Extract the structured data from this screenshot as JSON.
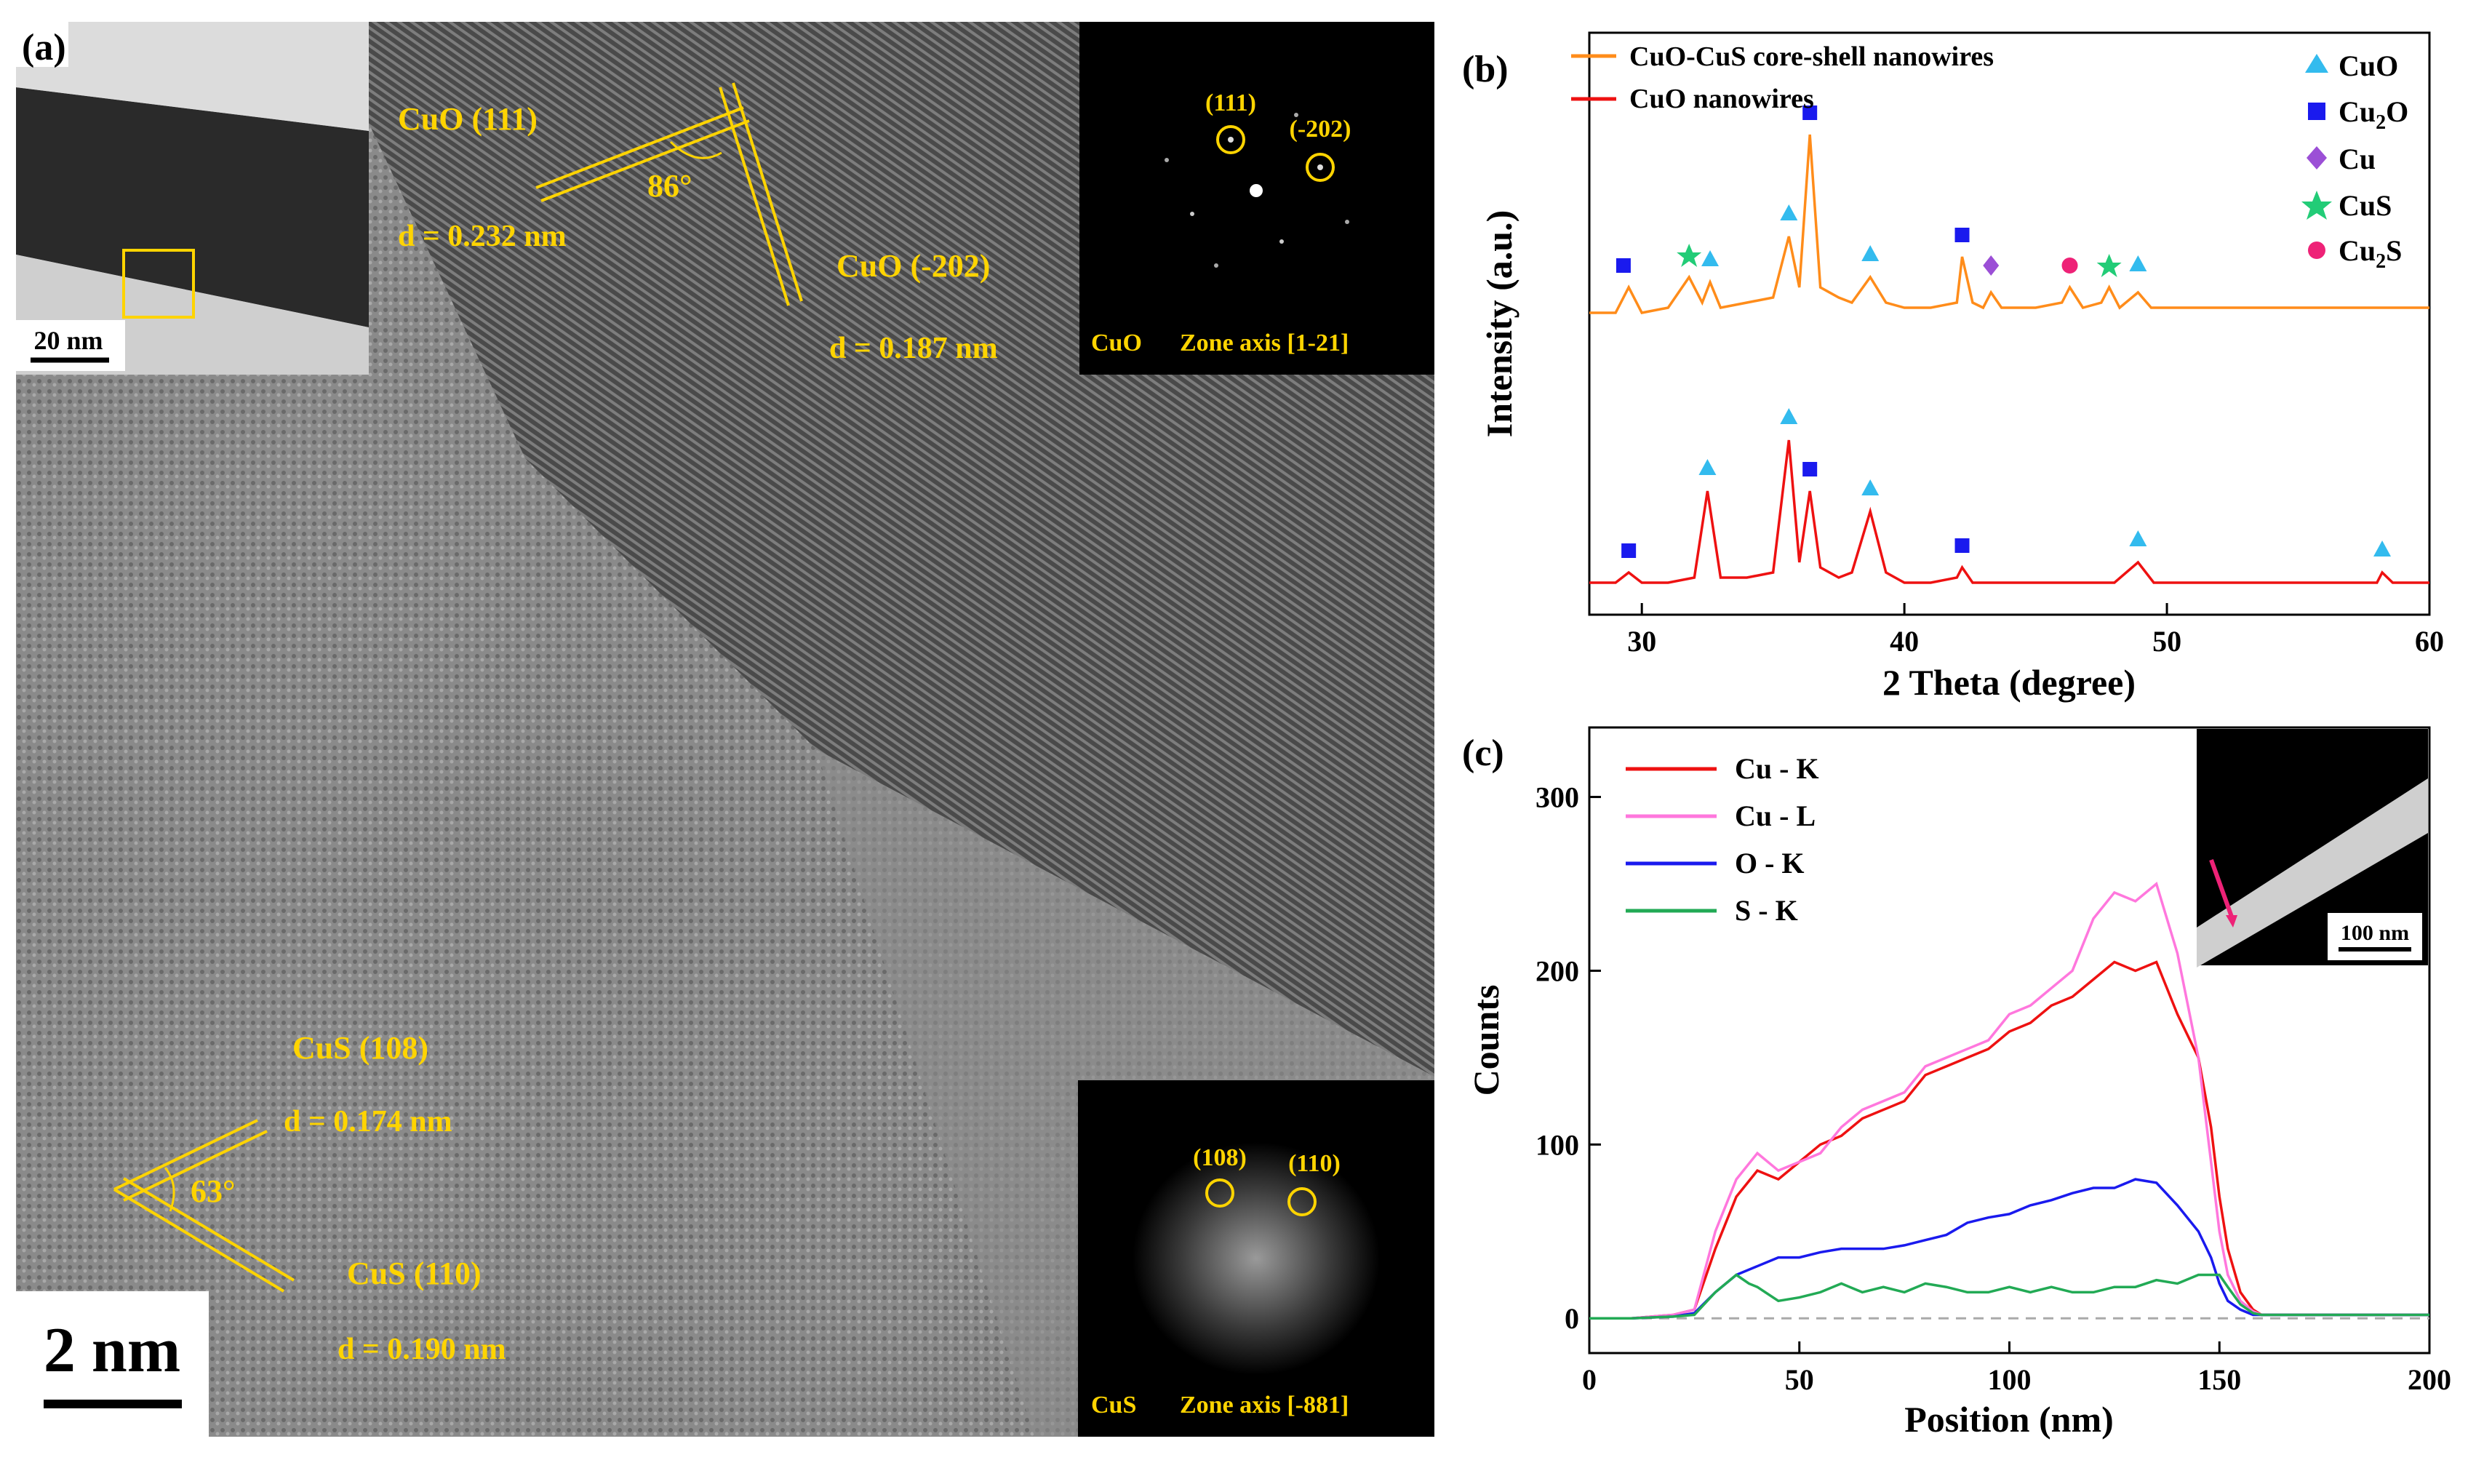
{
  "panel_a": {
    "label": "(a)",
    "inset_scale": "20 nm",
    "scale_bar": "2 nm",
    "cuo_111": "CuO (111)",
    "cuo_111_d": "d = 0.232 nm",
    "cuo_202": "CuO (-202)",
    "cuo_202_d": "d = 0.187 nm",
    "angle_cuo": "86°",
    "saed_cuo": {
      "spot1": "(111)",
      "spot2": "(-202)",
      "phase": "CuO",
      "zone": "Zone axis [1-21]"
    },
    "cus_108": "CuS (108)",
    "cus_108_d": "d = 0.174 nm",
    "cus_110": "CuS (110)",
    "cus_110_d": "d = 0.190 nm",
    "angle_cus": "63°",
    "fft_cus": {
      "spot1": "(108)",
      "spot2": "(110)",
      "phase": "CuS",
      "zone": "Zone axis [-881]"
    },
    "colors": {
      "annotation": "#ffd400"
    }
  },
  "chart_data": [
    {
      "panel": "(b)",
      "type": "line",
      "xlabel": "2 Theta (degree)",
      "ylabel": "Intensity (a.u.)",
      "xlim": [
        28,
        60
      ],
      "xticks": [
        30,
        40,
        50,
        60
      ],
      "series": [
        {
          "name": "CuO-CuS core-shell nanowires",
          "color": "#ff8c1a",
          "x": [
            28,
            29,
            29.5,
            30,
            31,
            31.8,
            32.3,
            32.6,
            33,
            34,
            35,
            35.6,
            36,
            36.4,
            36.8,
            37.5,
            38,
            38.7,
            39.3,
            40,
            41,
            42,
            42.2,
            42.6,
            43,
            43.3,
            43.7,
            44,
            45,
            46,
            46.3,
            46.8,
            47.5,
            47.8,
            48.2,
            48.9,
            49.4,
            50,
            51,
            52,
            53,
            54,
            55,
            56,
            57,
            58,
            59,
            60
          ],
          "y": [
            0.55,
            0.55,
            0.6,
            0.55,
            0.56,
            0.62,
            0.57,
            0.61,
            0.56,
            0.57,
            0.58,
            0.7,
            0.6,
            0.9,
            0.6,
            0.58,
            0.57,
            0.62,
            0.57,
            0.56,
            0.56,
            0.57,
            0.66,
            0.57,
            0.56,
            0.59,
            0.56,
            0.56,
            0.56,
            0.57,
            0.6,
            0.56,
            0.57,
            0.6,
            0.56,
            0.59,
            0.56,
            0.56,
            0.56,
            0.56,
            0.56,
            0.56,
            0.56,
            0.56,
            0.56,
            0.56,
            0.56,
            0.56
          ]
        },
        {
          "name": "CuO nanowires",
          "color": "#ee1111",
          "x": [
            28,
            29,
            29.5,
            30,
            31,
            32,
            32.5,
            33,
            34,
            35,
            35.6,
            36,
            36.4,
            36.8,
            37.5,
            38,
            38.7,
            39.3,
            40,
            41,
            42,
            42.2,
            42.6,
            43,
            45,
            48,
            48.9,
            49.5,
            50,
            52,
            55,
            58,
            58.2,
            58.6,
            59,
            60
          ],
          "y": [
            0.02,
            0.02,
            0.04,
            0.02,
            0.02,
            0.03,
            0.2,
            0.03,
            0.03,
            0.04,
            0.3,
            0.06,
            0.2,
            0.05,
            0.03,
            0.04,
            0.16,
            0.04,
            0.02,
            0.02,
            0.03,
            0.05,
            0.02,
            0.02,
            0.02,
            0.02,
            0.06,
            0.02,
            0.02,
            0.02,
            0.02,
            0.02,
            0.04,
            0.02,
            0.02,
            0.02
          ]
        }
      ],
      "legend": [
        "CuO-CuS core-shell nanowires",
        "CuO nanowires"
      ],
      "phase_legend": [
        "CuO",
        "Cu2O",
        "Cu",
        "CuS",
        "Cu2S"
      ],
      "phase_legend_labels": {
        "cuo": "CuO",
        "cu2o_base": "Cu",
        "cu2o_sub": "2",
        "cu2o_tail": "O",
        "cu": "Cu",
        "cus": "CuS",
        "cu2s_base": "Cu",
        "cu2s_sub": "2",
        "cu2s_tail": "S"
      },
      "phase_colors": {
        "CuO": "#33bbee",
        "Cu2O": "#1a1aee",
        "Cu": "#9b4fd6",
        "CuS": "#22cc77",
        "Cu2S": "#ee2277"
      },
      "markers_top": [
        {
          "phase": "Cu2O",
          "x": 29.3
        },
        {
          "phase": "CuS",
          "x": 31.8
        },
        {
          "phase": "CuO",
          "x": 32.6
        },
        {
          "phase": "CuO",
          "x": 35.6
        },
        {
          "phase": "Cu2O",
          "x": 36.4
        },
        {
          "phase": "CuO",
          "x": 38.7
        },
        {
          "phase": "Cu2O",
          "x": 42.2
        },
        {
          "phase": "Cu",
          "x": 43.3
        },
        {
          "phase": "Cu2S",
          "x": 46.3
        },
        {
          "phase": "CuS",
          "x": 47.8
        },
        {
          "phase": "CuO",
          "x": 48.9
        }
      ],
      "markers_bottom": [
        {
          "phase": "Cu2O",
          "x": 29.5
        },
        {
          "phase": "CuO",
          "x": 32.5
        },
        {
          "phase": "CuO",
          "x": 35.6
        },
        {
          "phase": "Cu2O",
          "x": 36.4
        },
        {
          "phase": "CuO",
          "x": 38.7
        },
        {
          "phase": "Cu2O",
          "x": 42.2
        },
        {
          "phase": "CuO",
          "x": 48.9
        },
        {
          "phase": "CuO",
          "x": 58.2
        }
      ]
    },
    {
      "panel": "(c)",
      "type": "line",
      "xlabel": "Position (nm)",
      "ylabel": "Counts",
      "xlim": [
        0,
        200
      ],
      "ylim": [
        -20,
        340
      ],
      "xticks": [
        0,
        50,
        100,
        150,
        200
      ],
      "yticks": [
        0,
        100,
        200,
        300
      ],
      "inset_scale": "100 nm",
      "series": [
        {
          "name": "Cu - K",
          "color": "#ee1111",
          "x": [
            0,
            10,
            20,
            25,
            30,
            35,
            40,
            45,
            50,
            55,
            60,
            65,
            70,
            75,
            80,
            85,
            90,
            95,
            100,
            105,
            110,
            115,
            120,
            125,
            130,
            135,
            140,
            145,
            148,
            150,
            152,
            155,
            158,
            160,
            170,
            180,
            190,
            200
          ],
          "y": [
            0,
            0,
            2,
            5,
            40,
            70,
            85,
            80,
            90,
            100,
            105,
            115,
            120,
            125,
            140,
            145,
            150,
            155,
            165,
            170,
            180,
            185,
            195,
            205,
            200,
            205,
            175,
            150,
            110,
            70,
            40,
            15,
            5,
            2,
            2,
            2,
            2,
            2
          ]
        },
        {
          "name": "Cu - L",
          "color": "#ff77dd",
          "x": [
            0,
            10,
            20,
            25,
            30,
            35,
            40,
            45,
            50,
            55,
            60,
            65,
            70,
            75,
            80,
            85,
            90,
            95,
            100,
            105,
            110,
            115,
            120,
            125,
            130,
            135,
            140,
            145,
            148,
            150,
            152,
            155,
            158,
            160,
            170,
            180,
            190,
            200
          ],
          "y": [
            0,
            0,
            2,
            5,
            50,
            80,
            95,
            85,
            90,
            95,
            110,
            120,
            125,
            130,
            145,
            150,
            155,
            160,
            175,
            180,
            190,
            200,
            230,
            245,
            240,
            250,
            210,
            150,
            90,
            50,
            25,
            10,
            4,
            2,
            2,
            2,
            2,
            2
          ]
        },
        {
          "name": "O - K",
          "color": "#1a1aee",
          "x": [
            0,
            10,
            20,
            25,
            30,
            35,
            40,
            45,
            50,
            55,
            60,
            65,
            70,
            75,
            80,
            85,
            90,
            95,
            100,
            105,
            110,
            115,
            120,
            125,
            130,
            135,
            140,
            145,
            148,
            150,
            152,
            155,
            158,
            160,
            170,
            180,
            190,
            200
          ],
          "y": [
            0,
            0,
            1,
            3,
            15,
            25,
            30,
            35,
            35,
            38,
            40,
            40,
            40,
            42,
            45,
            48,
            55,
            58,
            60,
            65,
            68,
            72,
            75,
            75,
            80,
            78,
            65,
            50,
            35,
            20,
            10,
            5,
            2,
            2,
            2,
            2,
            2,
            2
          ]
        },
        {
          "name": "S - K",
          "color": "#22aa55",
          "x": [
            0,
            10,
            20,
            25,
            30,
            35,
            38,
            40,
            45,
            50,
            55,
            60,
            65,
            70,
            75,
            80,
            85,
            90,
            95,
            100,
            105,
            110,
            115,
            120,
            125,
            130,
            135,
            140,
            145,
            150,
            152,
            155,
            158,
            160,
            170,
            180,
            190,
            200
          ],
          "y": [
            0,
            0,
            1,
            2,
            15,
            25,
            20,
            18,
            10,
            12,
            15,
            20,
            15,
            18,
            15,
            20,
            18,
            15,
            15,
            18,
            15,
            18,
            15,
            15,
            18,
            18,
            22,
            20,
            25,
            25,
            18,
            8,
            3,
            2,
            2,
            2,
            2,
            2
          ]
        }
      ],
      "baseline": 0
    }
  ]
}
